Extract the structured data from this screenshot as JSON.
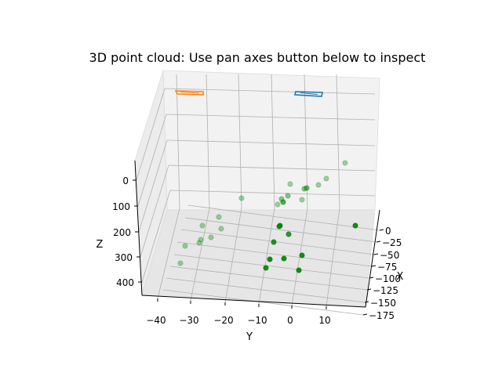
{
  "chart_data": {
    "type": "scatter",
    "title": "3D point cloud: Use pan axes button below to inspect",
    "xlabel": "X",
    "ylabel": "Y",
    "zlabel": "Z",
    "x_ticks": [
      "0",
      "−25",
      "−50",
      "−75",
      "−100",
      "−125",
      "−150",
      "−175"
    ],
    "y_ticks": [
      "−40",
      "−30",
      "−20",
      "−10",
      "0",
      "10"
    ],
    "z_ticks": [
      "0",
      "100",
      "200",
      "300",
      "400"
    ],
    "grid": true,
    "colors": {
      "points": "#008000",
      "marker_orange": "#ff7f0e",
      "marker_blue": "#1f77b4",
      "pane": "#f2f2f2",
      "grid": "#b0b0b0"
    }
  }
}
